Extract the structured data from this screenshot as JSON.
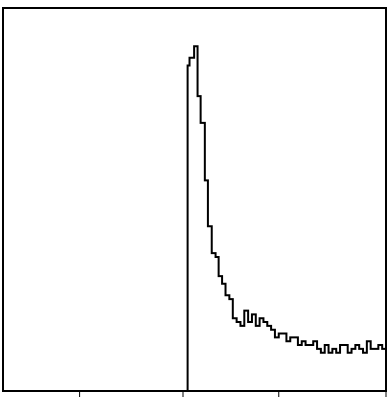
{
  "chart_data": {
    "type": "histogram",
    "title": "",
    "xlabel": "",
    "ylabel": "",
    "grid": false,
    "legend": "none",
    "line_color": "#000000",
    "xlim": [
      0,
      100
    ],
    "ylim": [
      0,
      100
    ],
    "x_ticks": [
      20,
      47,
      72,
      100
    ],
    "bin_edges": [
      48.2,
      48.7,
      49.9,
      50.8,
      51.6,
      52.7,
      53.5,
      54.5,
      55.5,
      56.3,
      57.2,
      58.1,
      59.1,
      60,
      61,
      62,
      63,
      64,
      65,
      66,
      67,
      68,
      69,
      70,
      71,
      72,
      73,
      74,
      75,
      76,
      77,
      78,
      79,
      80,
      81,
      82,
      83,
      84,
      85,
      86,
      87,
      88,
      89,
      90,
      91,
      92,
      93,
      94,
      95,
      96,
      97,
      98,
      99,
      100
    ],
    "counts": [
      85,
      87,
      90,
      77,
      70,
      55,
      43,
      36,
      35,
      30,
      28,
      25,
      24,
      19,
      18,
      17,
      21,
      18,
      20,
      17,
      19,
      18,
      17,
      16,
      14,
      15,
      15,
      13,
      14,
      14,
      12,
      13,
      12,
      12,
      13,
      11,
      10,
      12,
      10,
      11,
      10,
      12,
      12,
      10,
      11,
      12,
      11,
      10,
      13,
      11,
      11,
      12,
      11
    ]
  }
}
